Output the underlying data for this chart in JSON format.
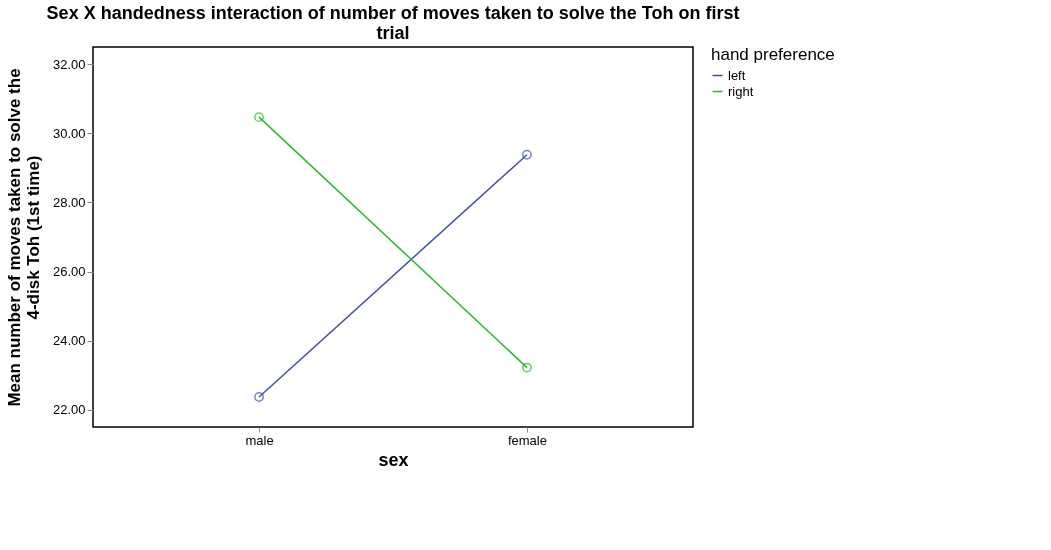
{
  "chart_data": {
    "type": "line",
    "title": "Sex X handedness interaction of number of moves taken to solve the Toh on first trial",
    "xlabel": "sex",
    "ylabel": "Mean number of moves taken to solve the 4-disk Toh (1st time)",
    "legend_title": "hand preference",
    "legend": "top right",
    "marker": "circle",
    "line_style": "solid",
    "grid": false,
    "categories": [
      "male",
      "female"
    ],
    "series": [
      {
        "name": "left",
        "color": "#3f4fa8",
        "values": [
          22.37,
          29.38
        ]
      },
      {
        "name": "right",
        "color": "#2db52d",
        "values": [
          30.47,
          23.22
        ]
      }
    ],
    "ylim": [
      21.5,
      32.5
    ],
    "yticks": [
      {
        "value": 22,
        "label": "22.00"
      },
      {
        "value": 24,
        "label": "24.00"
      },
      {
        "value": 26,
        "label": "26.00"
      },
      {
        "value": 28,
        "label": "28.00"
      },
      {
        "value": 30,
        "label": "30.00"
      },
      {
        "value": 32,
        "label": "32.00"
      }
    ]
  }
}
